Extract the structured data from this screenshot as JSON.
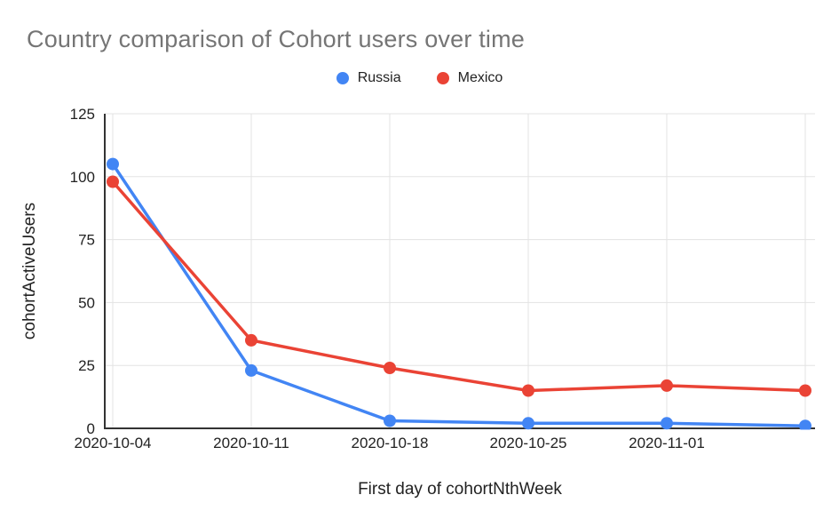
{
  "chart_data": {
    "type": "line",
    "title": "Country comparison of Cohort users over time",
    "xlabel": "First day of cohortNthWeek",
    "ylabel": "cohortActiveUsers",
    "x_tick_labels": [
      "2020-10-04",
      "2020-10-11",
      "2020-10-18",
      "2020-10-25",
      "2020-11-01"
    ],
    "num_points": 6,
    "series": [
      {
        "name": "Russia",
        "color": "#4285F4",
        "values": [
          105,
          23,
          3,
          2,
          2,
          1
        ]
      },
      {
        "name": "Mexico",
        "color": "#EA4335",
        "values": [
          98,
          35,
          24,
          15,
          17,
          15
        ]
      }
    ],
    "ylim": [
      0,
      125
    ],
    "yticks": [
      0,
      25,
      50,
      75,
      100,
      125
    ],
    "legend_position": "top",
    "grid": true
  },
  "style": {
    "background": "#ffffff",
    "title_color": "#757575",
    "axis_text_color": "#222222",
    "axis_line_color": "#333333",
    "grid_color": "#e3e3e3"
  }
}
